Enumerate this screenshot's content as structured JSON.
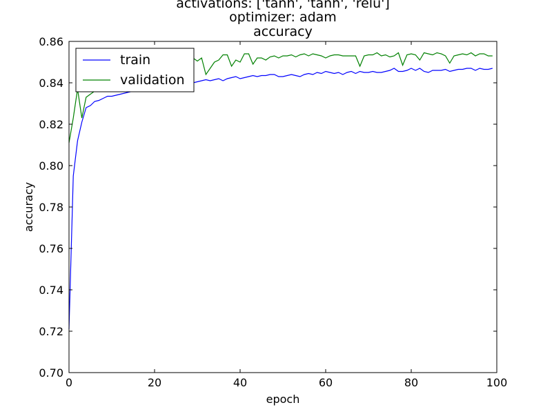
{
  "chart_data": {
    "type": "line",
    "title_lines": [
      "activations: ['tanh', 'tanh', 'relu']",
      "optimizer: adam",
      "accuracy"
    ],
    "xlabel": "epoch",
    "ylabel": "accuracy",
    "xlim": [
      0,
      100
    ],
    "ylim": [
      0.7,
      0.86
    ],
    "xticks": [
      0,
      20,
      40,
      60,
      80,
      100
    ],
    "yticks": [
      0.7,
      0.72,
      0.74,
      0.76,
      0.78,
      0.8,
      0.82,
      0.84,
      0.86
    ],
    "ytick_labels": [
      "0.70",
      "0.72",
      "0.74",
      "0.76",
      "0.78",
      "0.80",
      "0.82",
      "0.84",
      "0.86"
    ],
    "grid": false,
    "legend_position": "top-left",
    "x": [
      0,
      1,
      2,
      3,
      4,
      5,
      6,
      7,
      8,
      9,
      10,
      11,
      12,
      13,
      14,
      15,
      16,
      17,
      18,
      19,
      20,
      21,
      22,
      23,
      24,
      25,
      26,
      27,
      28,
      29,
      30,
      31,
      32,
      33,
      34,
      35,
      36,
      37,
      38,
      39,
      40,
      41,
      42,
      43,
      44,
      45,
      46,
      47,
      48,
      49,
      50,
      51,
      52,
      53,
      54,
      55,
      56,
      57,
      58,
      59,
      60,
      61,
      62,
      63,
      64,
      65,
      66,
      67,
      68,
      69,
      70,
      71,
      72,
      73,
      74,
      75,
      76,
      77,
      78,
      79,
      80,
      81,
      82,
      83,
      84,
      85,
      86,
      87,
      88,
      89,
      90,
      91,
      92,
      93,
      94,
      95,
      96,
      97,
      98,
      99
    ],
    "series": [
      {
        "name": "train",
        "color": "#0000ff",
        "values": [
          0.721,
          0.795,
          0.812,
          0.821,
          0.828,
          0.829,
          0.831,
          0.8315,
          0.8325,
          0.8335,
          0.8335,
          0.834,
          0.8345,
          0.835,
          0.8355,
          0.836,
          0.8365,
          0.8365,
          0.837,
          0.8375,
          0.8375,
          0.838,
          0.838,
          0.8385,
          0.8385,
          0.839,
          0.839,
          0.8395,
          0.8395,
          0.84,
          0.8405,
          0.841,
          0.8415,
          0.841,
          0.8415,
          0.842,
          0.841,
          0.842,
          0.8425,
          0.843,
          0.842,
          0.8425,
          0.843,
          0.8435,
          0.843,
          0.8435,
          0.8435,
          0.844,
          0.844,
          0.843,
          0.843,
          0.8435,
          0.844,
          0.8435,
          0.843,
          0.844,
          0.8445,
          0.844,
          0.845,
          0.8445,
          0.8455,
          0.845,
          0.8445,
          0.845,
          0.844,
          0.845,
          0.8455,
          0.8445,
          0.8455,
          0.845,
          0.845,
          0.8455,
          0.845,
          0.845,
          0.8455,
          0.846,
          0.847,
          0.8455,
          0.8455,
          0.846,
          0.847,
          0.846,
          0.847,
          0.8455,
          0.845,
          0.846,
          0.846,
          0.846,
          0.8465,
          0.8455,
          0.846,
          0.8465,
          0.8465,
          0.847,
          0.847,
          0.846,
          0.847,
          0.8465,
          0.8465,
          0.847
        ]
      },
      {
        "name": "validation",
        "color": "#008000",
        "values": [
          0.811,
          0.823,
          0.837,
          0.823,
          0.833,
          0.8345,
          0.836,
          0.8385,
          0.8395,
          0.84,
          0.8405,
          0.841,
          0.843,
          0.842,
          0.8435,
          0.845,
          0.844,
          0.846,
          0.845,
          0.847,
          0.848,
          0.849,
          0.848,
          0.85,
          0.849,
          0.85,
          0.851,
          0.85,
          0.8515,
          0.852,
          0.8505,
          0.852,
          0.844,
          0.847,
          0.85,
          0.851,
          0.8535,
          0.8535,
          0.848,
          0.851,
          0.85,
          0.854,
          0.854,
          0.849,
          0.852,
          0.852,
          0.851,
          0.8525,
          0.853,
          0.852,
          0.853,
          0.853,
          0.8535,
          0.8525,
          0.8535,
          0.854,
          0.853,
          0.854,
          0.8535,
          0.853,
          0.852,
          0.853,
          0.8535,
          0.8535,
          0.853,
          0.853,
          0.853,
          0.853,
          0.848,
          0.853,
          0.8535,
          0.8535,
          0.8545,
          0.853,
          0.8535,
          0.8525,
          0.853,
          0.8545,
          0.8485,
          0.8535,
          0.854,
          0.8535,
          0.851,
          0.8545,
          0.854,
          0.8535,
          0.8545,
          0.854,
          0.853,
          0.8495,
          0.853,
          0.8535,
          0.854,
          0.8535,
          0.8545,
          0.853,
          0.854,
          0.854,
          0.853,
          0.853
        ]
      }
    ]
  }
}
